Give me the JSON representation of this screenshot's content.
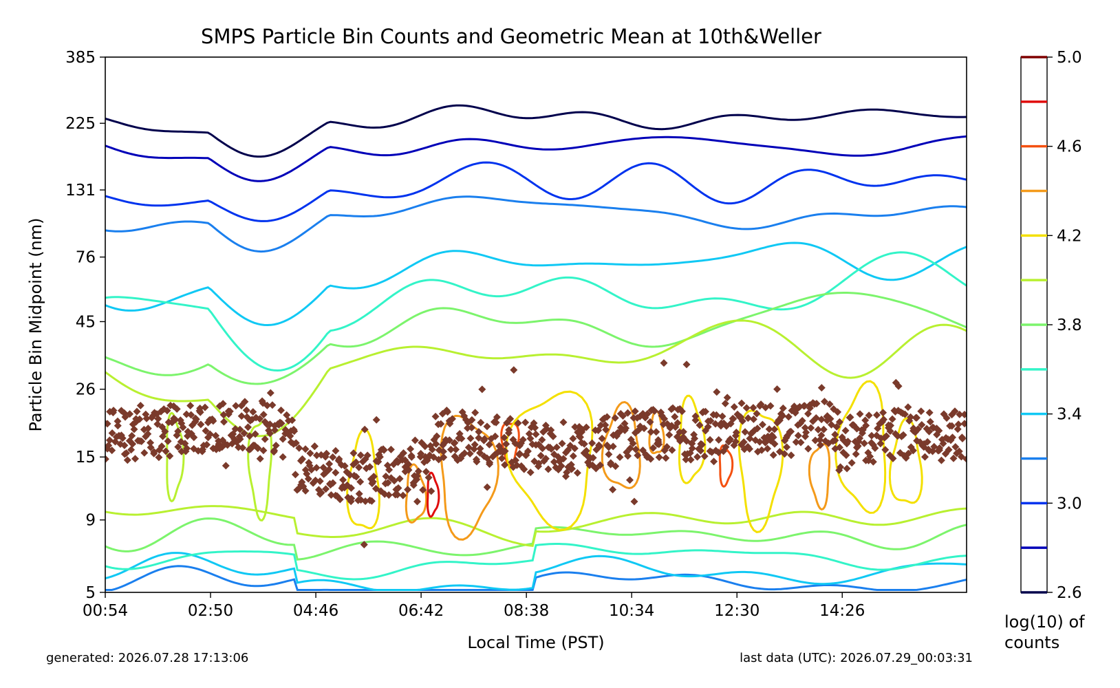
{
  "chart_data": {
    "type": "contour",
    "title": "SMPS Particle Bin Counts and Geometric Mean at 10th&Weller",
    "xlabel": "Local Time (PST)",
    "ylabel": "Particle Bin Midpoint (nm)",
    "x_tick_labels": [
      "00:54",
      "02:50",
      "04:46",
      "06:42",
      "08:38",
      "10:34",
      "12:30",
      "14:26"
    ],
    "x_tick_minutes": [
      54,
      170,
      286,
      402,
      518,
      634,
      750,
      866
    ],
    "xlim_minutes": [
      54,
      1003
    ],
    "y_scale": "log",
    "y_tick_labels": [
      "385",
      "225",
      "131",
      "76",
      "45",
      "26",
      "15",
      "9",
      "5"
    ],
    "y_ticks": [
      385,
      225,
      131,
      76,
      45,
      26,
      15,
      9,
      5
    ],
    "ylim": [
      5,
      385
    ],
    "colorbar": {
      "label": "log(10) of counts",
      "range": [
        2.6,
        5.0
      ],
      "tick_labels": [
        "5.0",
        "4.6",
        "4.2",
        "3.8",
        "3.4",
        "3.0",
        "2.6"
      ],
      "ticks": [
        5.0,
        4.6,
        4.2,
        3.8,
        3.4,
        3.0,
        2.6
      ],
      "levels": [
        {
          "value": 2.6,
          "color": "#00004c"
        },
        {
          "value": 2.8,
          "color": "#0000b8"
        },
        {
          "value": 3.0,
          "color": "#0033ee"
        },
        {
          "value": 3.2,
          "color": "#1a7fee"
        },
        {
          "value": 3.4,
          "color": "#10c8f4"
        },
        {
          "value": 3.6,
          "color": "#33f4c8"
        },
        {
          "value": 3.8,
          "color": "#7cf46c"
        },
        {
          "value": 4.0,
          "color": "#b8f030"
        },
        {
          "value": 4.2,
          "color": "#f4e000"
        },
        {
          "value": 4.4,
          "color": "#f49a1a"
        },
        {
          "value": 4.6,
          "color": "#f45010"
        },
        {
          "value": 4.8,
          "color": "#e00c0c"
        },
        {
          "value": 5.0,
          "color": "#7f0000"
        }
      ]
    },
    "geometric_mean": {
      "marker": "diamond",
      "color": "#7a3a2b",
      "approx_range_nm": [
        9,
        38
      ]
    },
    "grid": false,
    "legend": "none"
  },
  "footer": {
    "generated": "generated: 2026.07.28 17:13:06",
    "last_data": "last data (UTC): 2026.07.29_00:03:31"
  }
}
